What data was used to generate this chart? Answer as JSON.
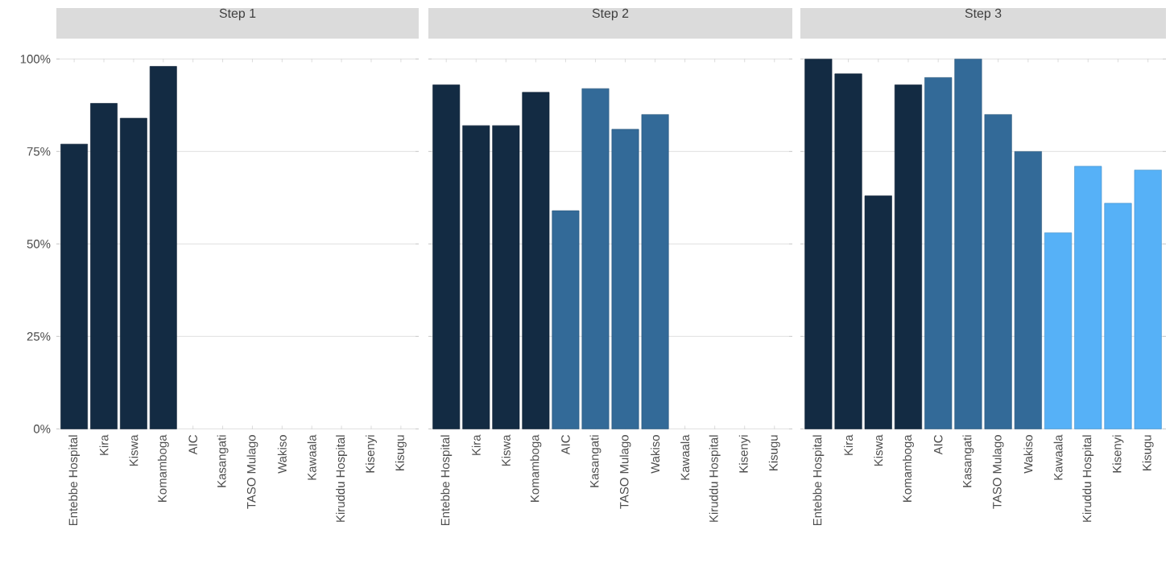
{
  "chart_data": [
    {
      "type": "bar",
      "title": "Step 1",
      "categories": [
        "Entebbe Hospital",
        "Kira",
        "Kiswa",
        "Komamboga",
        "AIC",
        "Kasangati",
        "TASO Mulago",
        "Wakiso",
        "Kawaala",
        "Kiruddu Hospital",
        "Kisenyi",
        "Kisugu"
      ],
      "values": [
        77,
        88,
        84,
        98,
        null,
        null,
        null,
        null,
        null,
        null,
        null,
        null
      ],
      "colors": [
        "#132b43",
        "#132b43",
        "#132b43",
        "#132b43",
        "#336a98",
        "#336a98",
        "#336a98",
        "#336a98",
        "#56b1f7",
        "#56b1f7",
        "#56b1f7",
        "#56b1f7"
      ],
      "ylim": [
        0,
        100
      ],
      "yticks": [
        {
          "value": 0,
          "label": "0%"
        },
        {
          "value": 25,
          "label": "25%"
        },
        {
          "value": 50,
          "label": "50%"
        },
        {
          "value": 75,
          "label": "75%"
        },
        {
          "value": 100,
          "label": "100%"
        }
      ],
      "grid": "y"
    },
    {
      "type": "bar",
      "title": "Step 2",
      "categories": [
        "Entebbe Hospital",
        "Kira",
        "Kiswa",
        "Komamboga",
        "AIC",
        "Kasangati",
        "TASO Mulago",
        "Wakiso",
        "Kawaala",
        "Kiruddu Hospital",
        "Kisenyi",
        "Kisugu"
      ],
      "values": [
        93,
        82,
        82,
        91,
        59,
        92,
        81,
        85,
        null,
        null,
        null,
        null
      ],
      "colors": [
        "#132b43",
        "#132b43",
        "#132b43",
        "#132b43",
        "#336a98",
        "#336a98",
        "#336a98",
        "#336a98",
        "#56b1f7",
        "#56b1f7",
        "#56b1f7",
        "#56b1f7"
      ],
      "ylim": [
        0,
        100
      ],
      "yticks": [
        0,
        25,
        50,
        75,
        100
      ],
      "grid": "y",
      "tick_labels": "x"
    },
    {
      "type": "bar",
      "title": "Step 3",
      "categories": [
        "Entebbe Hospital",
        "Kira",
        "Kiswa",
        "Komamboga",
        "AIC",
        "Kasangati",
        "TASO Mulago",
        "Wakiso",
        "Kawaala",
        "Kiruddu Hospital",
        "Kisenyi",
        "Kisugu"
      ],
      "values": [
        100,
        96,
        63,
        93,
        95,
        100,
        85,
        75,
        53,
        71,
        61,
        70
      ],
      "colors": [
        "#132b43",
        "#132b43",
        "#132b43",
        "#132b43",
        "#336a98",
        "#336a98",
        "#336a98",
        "#336a98",
        "#56b1f7",
        "#56b1f7",
        "#56b1f7",
        "#56b1f7"
      ],
      "ylim": [
        0,
        100
      ],
      "yticks": [
        0,
        25,
        50,
        75,
        100
      ],
      "grid": "y",
      "tick_labels": "x"
    }
  ]
}
